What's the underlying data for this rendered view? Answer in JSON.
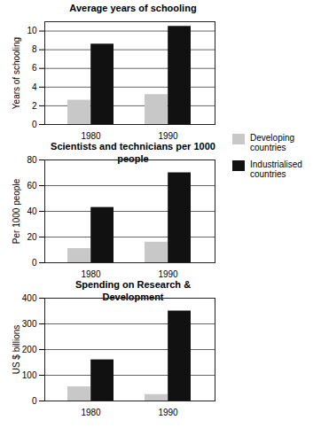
{
  "chart_data": [
    {
      "type": "bar",
      "title": "Average years of schooling",
      "ylabel": "Years of schooling",
      "categories": [
        "1980",
        "1990"
      ],
      "series": [
        {
          "name": "Developing countries",
          "color": "#c8c8c8",
          "values": [
            2.6,
            3.2
          ]
        },
        {
          "name": "Industrialised countries",
          "color": "#111111",
          "values": [
            8.6,
            10.5
          ]
        }
      ],
      "ylim": [
        0,
        11
      ],
      "yticks": [
        0,
        2,
        4,
        6,
        8,
        10
      ],
      "grid": true,
      "legend": "right"
    },
    {
      "type": "bar",
      "title": "Scientists and technicians per 1000 people",
      "ylabel": "Per 1000 people",
      "categories": [
        "1980",
        "1990"
      ],
      "series": [
        {
          "name": "Developing countries",
          "color": "#c8c8c8",
          "values": [
            11,
            16
          ]
        },
        {
          "name": "Industrialised countries",
          "color": "#111111",
          "values": [
            43,
            70
          ]
        }
      ],
      "ylim": [
        0,
        80
      ],
      "yticks": [
        0,
        20,
        40,
        60,
        80
      ],
      "grid": true,
      "legend": "right"
    },
    {
      "type": "bar",
      "title": "Spending on Research & Development",
      "ylabel": "US $ billions",
      "categories": [
        "1980",
        "1990"
      ],
      "series": [
        {
          "name": "Developing countries",
          "color": "#c8c8c8",
          "values": [
            55,
            25
          ]
        },
        {
          "name": "Industrialised countries",
          "color": "#111111",
          "values": [
            160,
            350
          ]
        }
      ],
      "ylim": [
        0,
        400
      ],
      "yticks": [
        0,
        100,
        200,
        300,
        400
      ],
      "grid": true,
      "legend": "right"
    }
  ]
}
